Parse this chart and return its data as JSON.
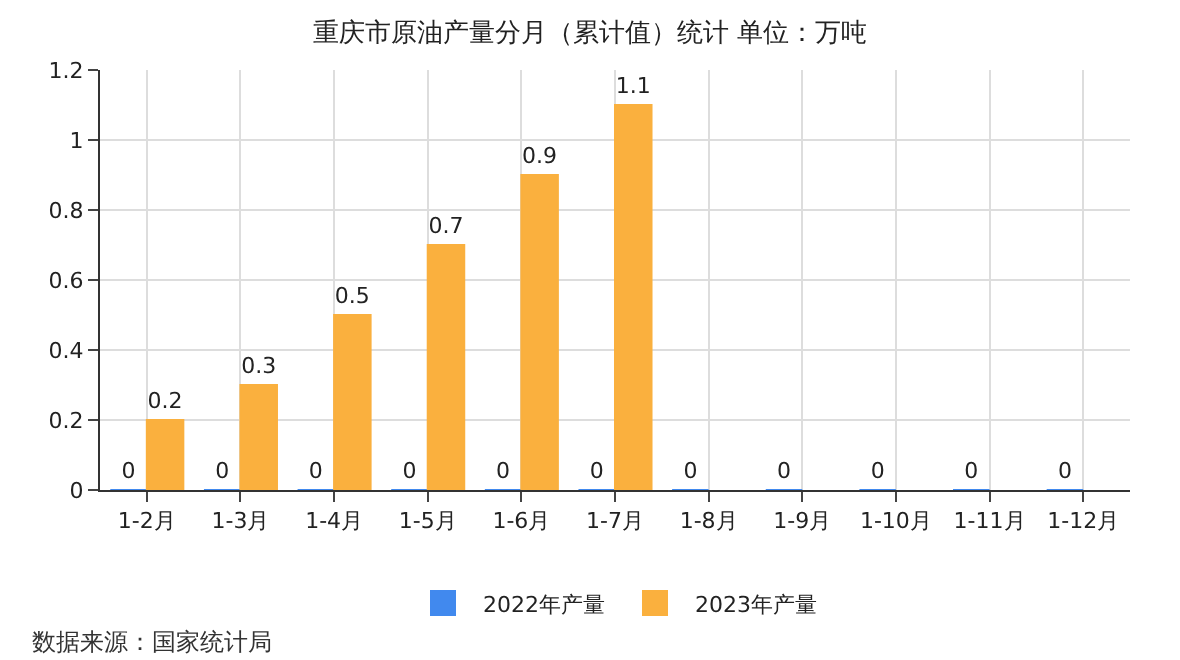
{
  "chart_data": {
    "type": "bar",
    "title": "重庆市原油产量分月（累计值）统计 单位：万吨",
    "categories": [
      "1-2月",
      "1-3月",
      "1-4月",
      "1-5月",
      "1-6月",
      "1-7月",
      "1-8月",
      "1-9月",
      "1-10月",
      "1-11月",
      "1-12月"
    ],
    "series": [
      {
        "name": "2022年产量",
        "color": "#4189ee",
        "values": [
          0,
          0,
          0,
          0,
          0,
          0,
          0,
          0,
          0,
          0,
          0
        ]
      },
      {
        "name": "2023年产量",
        "color": "#fab03e",
        "values": [
          0.2,
          0.3,
          0.5,
          0.7,
          0.9,
          1.1,
          null,
          null,
          null,
          null,
          null
        ]
      }
    ],
    "ylim": [
      0,
      1.2
    ],
    "yticks": [
      0,
      0.2,
      0.4,
      0.6,
      0.8,
      1,
      1.2
    ],
    "grid": true,
    "legend": "bottom",
    "data_labels": true,
    "annotations": [
      "数据来源：国家统计局"
    ]
  }
}
